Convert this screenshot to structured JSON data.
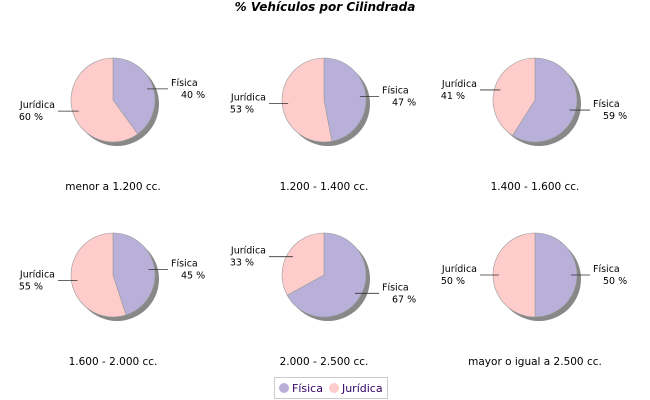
{
  "chart_data": {
    "type": "pie",
    "title": "% Vehículos por Cilindrada",
    "series_names": [
      "Física",
      "Jurídica"
    ],
    "colors": {
      "Física": "#b8b0d8",
      "Jurídica": "#ffcccc"
    },
    "legend_position": "bottom",
    "pies": [
      {
        "category": "menor a 1.200 cc.",
        "values": [
          40,
          60
        ],
        "labels": [
          "40 %",
          "60 %"
        ]
      },
      {
        "category": "1.200 - 1.400 cc.",
        "values": [
          47,
          53
        ],
        "labels": [
          "47 %",
          "53 %"
        ]
      },
      {
        "category": "1.400 - 1.600 cc.",
        "values": [
          59,
          41
        ],
        "labels": [
          "59 %",
          "41 %"
        ]
      },
      {
        "category": "1.600 - 2.000 cc.",
        "values": [
          45,
          55
        ],
        "labels": [
          "45 %",
          "55 %"
        ]
      },
      {
        "category": "2.000 - 2.500 cc.",
        "values": [
          67,
          33
        ],
        "labels": [
          "67 %",
          "33 %"
        ]
      },
      {
        "category": "mayor o igual a 2.500 cc.",
        "values": [
          50,
          50
        ],
        "labels": [
          "50 %",
          "50 %"
        ]
      }
    ]
  }
}
